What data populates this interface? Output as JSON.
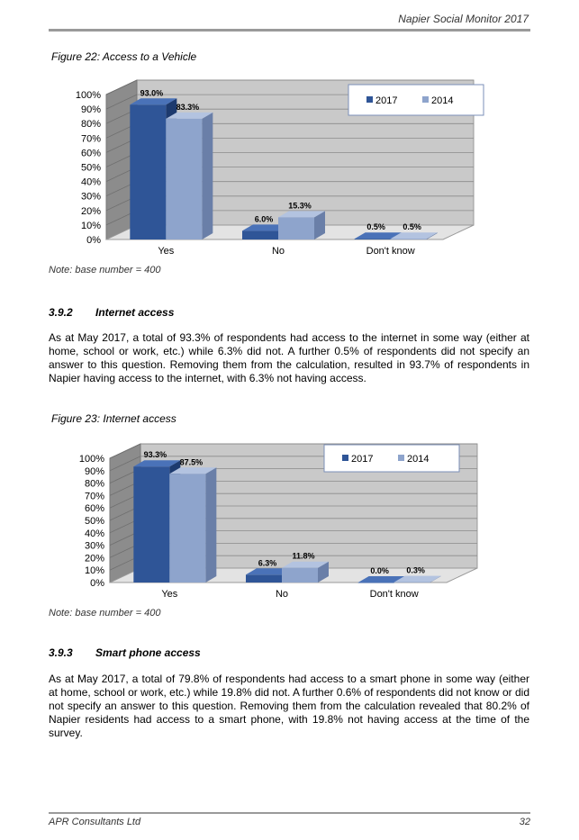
{
  "header": {
    "title": "Napier Social Monitor 2017"
  },
  "figure22": {
    "caption": "Figure 22:  Access to a Vehicle",
    "note": "Note: base number = 400"
  },
  "section_392": {
    "number": "3.9.2",
    "title": "Internet access",
    "paragraph": "As at May 2017, a total of 93.3% of respondents had access to the internet in some way (either at home, school or work, etc.) while 6.3% did not.  A further 0.5% of respondents did not specify an answer to this question.  Removing them from the calculation, resulted in 93.7% of respondents in Napier having access to the internet, with 6.3% not having access."
  },
  "figure23": {
    "caption": "Figure 23:  Internet access",
    "note": "Note: base number = 400"
  },
  "section_393": {
    "number": "3.9.3",
    "title": "Smart phone access",
    "paragraph": "As at May 2017, a total of 79.8% of respondents had access to a smart phone in some way (either at home, school or work, etc.) while 19.8% did not.  A further 0.6% of respondents did not know or did not specify an answer to this question.  Removing them from the calculation revealed that 80.2% of Napier residents had access to a smart phone, with 19.8% not having access at the time of the survey."
  },
  "footer": {
    "left": "APR Consultants Ltd",
    "page_number": "32"
  },
  "colors": {
    "series_2017": "#2f5597",
    "series_2014": "#8ea4cc",
    "wall": "#c9c9c9",
    "floor": "#e3e3e3"
  },
  "chart_data": [
    {
      "type": "bar",
      "title": "",
      "categories": [
        "Yes",
        "No",
        "Don't know"
      ],
      "series": [
        {
          "name": "2017",
          "values": [
            93.0,
            6.0,
            0.5
          ],
          "labels": [
            "93.0%",
            "6.0%",
            "0.5%"
          ]
        },
        {
          "name": "2014",
          "values": [
            83.3,
            15.3,
            0.5
          ],
          "labels": [
            "83.3%",
            "15.3%",
            "0.5%"
          ]
        }
      ],
      "yticks": [
        "0%",
        "10%",
        "20%",
        "30%",
        "40%",
        "50%",
        "60%",
        "70%",
        "80%",
        "90%",
        "100%"
      ],
      "ylim": [
        0,
        100
      ],
      "grid": true,
      "legend": "top-right"
    },
    {
      "type": "bar",
      "title": "",
      "categories": [
        "Yes",
        "No",
        "Don't know"
      ],
      "series": [
        {
          "name": "2017",
          "values": [
            93.3,
            6.3,
            0.0
          ],
          "labels": [
            "93.3%",
            "6.3%",
            "0.0%"
          ]
        },
        {
          "name": "2014",
          "values": [
            87.5,
            11.8,
            0.3
          ],
          "labels": [
            "87.5%",
            "11.8%",
            "0.3%"
          ]
        }
      ],
      "yticks": [
        "0%",
        "10%",
        "20%",
        "30%",
        "40%",
        "50%",
        "60%",
        "70%",
        "80%",
        "90%",
        "100%"
      ],
      "ylim": [
        0,
        100
      ],
      "grid": true,
      "legend": "top-right"
    }
  ]
}
